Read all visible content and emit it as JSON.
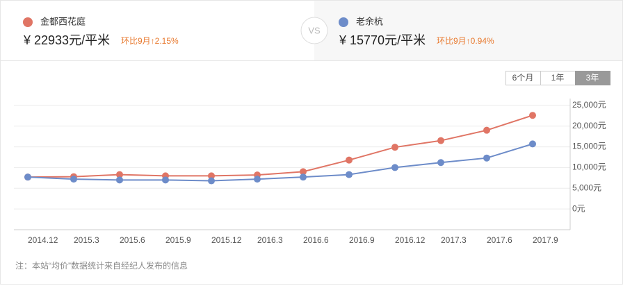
{
  "compare": {
    "left": {
      "name": "金都西花庭",
      "price": "¥ 22933元/平米",
      "change": "环比9月↑2.15%"
    },
    "vs": "VS",
    "right": {
      "name": "老余杭",
      "price": "¥ 15770元/平米",
      "change": "环比9月↑0.94%"
    }
  },
  "ranges": [
    "6个月",
    "1年",
    "3年"
  ],
  "note": "注：本站“均价”数据统计来自经纪人发布的信息",
  "chart_data": {
    "type": "line",
    "categories": [
      "2014.12",
      "2015.3",
      "2015.6",
      "2015.9",
      "2015.12",
      "2016.3",
      "2016.6",
      "2016.9",
      "2016.12",
      "2017.3",
      "2017.6",
      "2017.9"
    ],
    "series": [
      {
        "name": "金都西花庭",
        "color": "#e07565",
        "values": [
          7700,
          7800,
          8300,
          8000,
          8000,
          8200,
          9000,
          11800,
          14900,
          16500,
          19000,
          22600
        ]
      },
      {
        "name": "老余杭",
        "color": "#6d8cc9",
        "values": [
          7700,
          7200,
          7000,
          7000,
          6800,
          7200,
          7700,
          8300,
          10000,
          11200,
          12300,
          15700
        ]
      }
    ],
    "ylim": [
      -5000,
      30000
    ],
    "yticks": [
      {
        "value": 0,
        "label": "0元"
      },
      {
        "value": 5000,
        "label": "5,000元"
      },
      {
        "value": 10000,
        "label": "10,000元"
      },
      {
        "value": 15000,
        "label": "15,000元"
      },
      {
        "value": 20000,
        "label": "20,000元"
      },
      {
        "value": 25000,
        "label": "25,000元"
      }
    ],
    "grid": true
  }
}
